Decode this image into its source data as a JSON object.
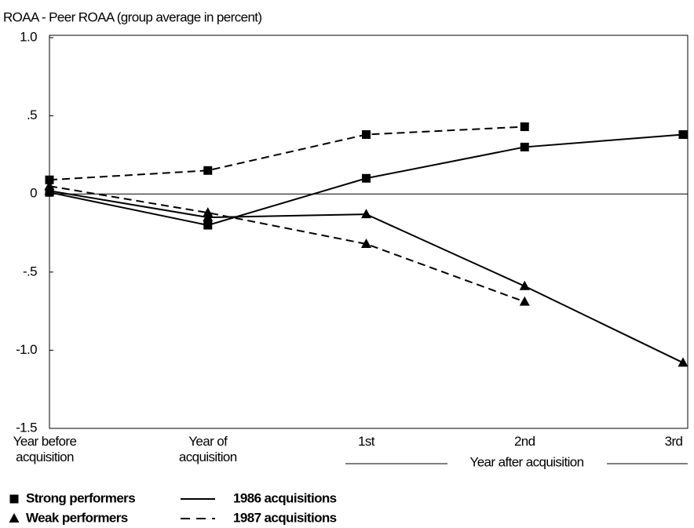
{
  "chart_data": {
    "type": "line",
    "y_axis_title": "ROAA - Peer ROAA (group average in percent)",
    "categories": [
      "Year before acquisition",
      "Year of acquisition",
      "1st",
      "2nd",
      "3rd"
    ],
    "category_group_label": "Year after acquisition",
    "ylim": [
      -1.5,
      1.0
    ],
    "yticks": [
      {
        "value": 1.0,
        "label": "1.0"
      },
      {
        "value": 0.5,
        "label": ".5"
      },
      0,
      {
        "value": -0.5,
        "label": "-.5"
      },
      {
        "value": -1.0,
        "label": "-1.0"
      },
      {
        "value": -1.5,
        "label": "-1.5"
      }
    ],
    "zero_line": true,
    "series": [
      {
        "marker": "square",
        "dash": "solid",
        "color": "#000000",
        "values": [
          0.01,
          -0.2,
          0.1,
          0.3,
          0.38
        ]
      },
      {
        "marker": "square",
        "dash": "dashed",
        "color": "#000000",
        "values": [
          0.09,
          0.15,
          0.38,
          0.43,
          null
        ]
      },
      {
        "marker": "triangle",
        "dash": "solid",
        "color": "#000000",
        "values": [
          0.02,
          -0.15,
          -0.13,
          -0.59,
          -1.08
        ]
      },
      {
        "marker": "triangle",
        "dash": "dashed",
        "color": "#000000",
        "values": [
          0.05,
          -0.12,
          -0.32,
          -0.69,
          null
        ]
      }
    ],
    "legend": {
      "markers": [
        {
          "label": "Strong performers",
          "marker": "square"
        },
        {
          "label": "Weak performers",
          "marker": "triangle"
        }
      ],
      "lines": [
        {
          "label": "1986 acquisitions",
          "dash": "solid"
        },
        {
          "label": "1987 acquisitions",
          "dash": "dashed"
        }
      ]
    }
  }
}
